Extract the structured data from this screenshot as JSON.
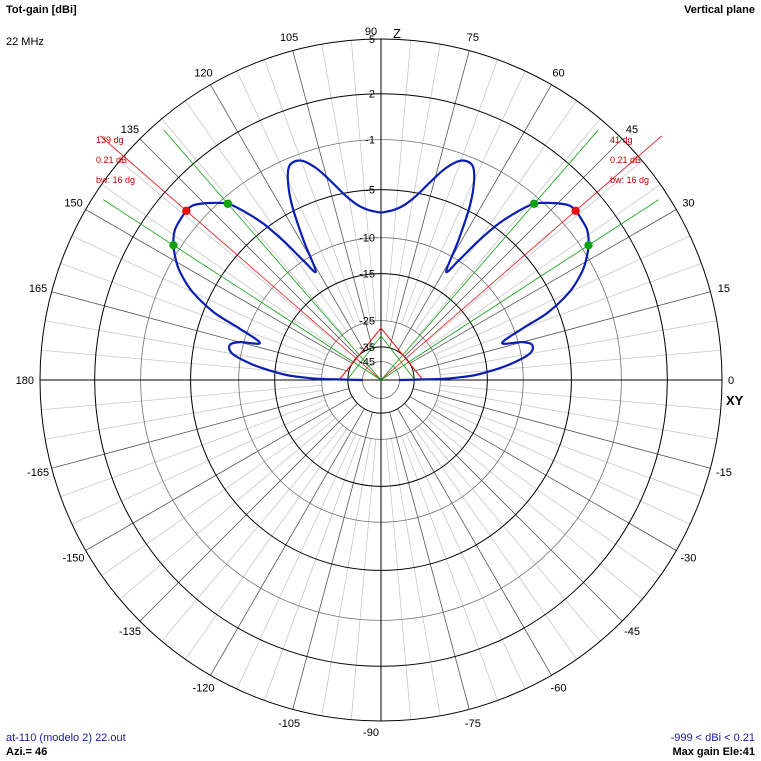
{
  "header": {
    "title": "Tot-gain [dBi]",
    "frequency": "22 MHz",
    "plane": "Vertical plane"
  },
  "footer": {
    "file": "at-110 (modelo 2) 22.out",
    "azimuth": "Azi.= 46",
    "range": "-999 < dBi < 0.21",
    "max_gain": "Max gain Ele:41"
  },
  "chart_data": {
    "type": "polar",
    "axis_labels": {
      "vertical": "Z",
      "horizontal": "XY"
    },
    "angle_ticks": [
      0,
      15,
      30,
      45,
      60,
      75,
      90,
      105,
      120,
      135,
      150,
      165,
      180,
      -165,
      -150,
      -135,
      -120,
      -105,
      -90,
      -75,
      -60,
      -45,
      -30,
      -15
    ],
    "gain_ticks": [
      5,
      2,
      -1,
      -5,
      -10,
      -15,
      -25,
      -35,
      -45
    ],
    "rlim_dbi": [
      -45,
      5
    ],
    "colors": {
      "pattern": "#0a1eb4",
      "max_gain_marker": "#e81010",
      "beamwidth_marker": "#10a010",
      "grid": "#c8c8c8",
      "rings": "#000000",
      "max_gain_line": "#e81010",
      "beamwidth_line": "#10a010"
    },
    "annotations": {
      "left": {
        "angle_label": "139 dg",
        "gain_label": "0.21 dB",
        "bw_label": "bw: 16 dg"
      },
      "right": {
        "angle_label": "41 dg",
        "gain_label": "0.21 dB",
        "bw_label": "bw: 16 dg"
      }
    },
    "max_gain": {
      "elevation_deg": [
        41,
        139
      ],
      "gain_dbi": 0.21
    },
    "beamwidth_points_deg": [
      [
        33,
        49
      ],
      [
        131,
        147
      ]
    ],
    "series": [
      {
        "elevation_deg": [
          0,
          1,
          2,
          3,
          5,
          7,
          10,
          13,
          15,
          17,
          20,
          22,
          25,
          28,
          30,
          33,
          36,
          39,
          41,
          43,
          46,
          49,
          51,
          53,
          55,
          57,
          59,
          61,
          63,
          65,
          67,
          70,
          73,
          76,
          79,
          82,
          85,
          88,
          90
        ],
        "gain_dbi": [
          -45,
          -25,
          -20,
          -17,
          -14,
          -11.5,
          -9,
          -8.5,
          -9.5,
          -12,
          -9,
          -6,
          -3.5,
          -2,
          -1.3,
          -0.5,
          0,
          0.15,
          0.21,
          0.1,
          -0.6,
          -1.5,
          -2.8,
          -4.5,
          -7,
          -10,
          -12,
          -8,
          -4.5,
          -2.5,
          -1.5,
          -1.5,
          -2.4,
          -3.8,
          -5.2,
          -6.2,
          -6.8,
          -7.1,
          -7.2
        ]
      }
    ]
  }
}
